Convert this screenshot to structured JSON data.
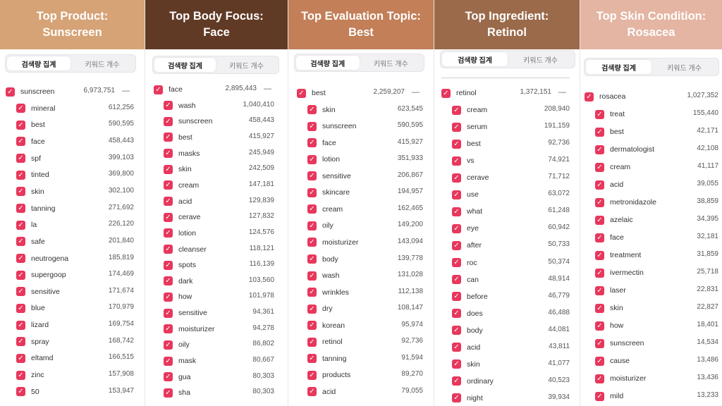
{
  "colors": {
    "header_1": "#d5a376",
    "header_2": "#613a26",
    "header_3": "#c27f58",
    "header_4": "#9b6a4a",
    "header_5": "#e4b5a3",
    "checkbox": "#e8375c"
  },
  "icons": {
    "checkbox": "checkbox-checked-icon",
    "collapse": "minus-icon"
  },
  "panels": [
    {
      "title_line1": "Top Product:",
      "title_line2": "Sunscreen",
      "tab_search_volume": "검색량 집계",
      "tab_keyword_count": "키워드 개수",
      "parent": {
        "keyword": "sunscreen",
        "value": "6,973,751"
      },
      "items": [
        {
          "keyword": "mineral",
          "value": "612,256"
        },
        {
          "keyword": "best",
          "value": "590,595"
        },
        {
          "keyword": "face",
          "value": "458,443"
        },
        {
          "keyword": "spf",
          "value": "399,103"
        },
        {
          "keyword": "tinted",
          "value": "369,800"
        },
        {
          "keyword": "skin",
          "value": "302,100"
        },
        {
          "keyword": "tanning",
          "value": "271,692"
        },
        {
          "keyword": "la",
          "value": "226,120"
        },
        {
          "keyword": "safe",
          "value": "201,840"
        },
        {
          "keyword": "neutrogena",
          "value": "185,819"
        },
        {
          "keyword": "supergoop",
          "value": "174,469"
        },
        {
          "keyword": "sensitive",
          "value": "171,674"
        },
        {
          "keyword": "blue",
          "value": "170,979"
        },
        {
          "keyword": "lizard",
          "value": "169,754"
        },
        {
          "keyword": "spray",
          "value": "168,742"
        },
        {
          "keyword": "eltamd",
          "value": "166,515"
        },
        {
          "keyword": "zinc",
          "value": "157,908"
        },
        {
          "keyword": "50",
          "value": "153,947"
        }
      ]
    },
    {
      "title_line1": "Top Body Focus:",
      "title_line2": "Face",
      "tab_search_volume": "검색량 집계",
      "tab_keyword_count": "키워드 개수",
      "parent": {
        "keyword": "face",
        "value": "2,895,443"
      },
      "items": [
        {
          "keyword": "wash",
          "value": "1,040,410"
        },
        {
          "keyword": "sunscreen",
          "value": "458,443"
        },
        {
          "keyword": "best",
          "value": "415,927"
        },
        {
          "keyword": "masks",
          "value": "245,949"
        },
        {
          "keyword": "skin",
          "value": "242,509"
        },
        {
          "keyword": "cream",
          "value": "147,181"
        },
        {
          "keyword": "acid",
          "value": "129,839"
        },
        {
          "keyword": "cerave",
          "value": "127,832"
        },
        {
          "keyword": "lotion",
          "value": "124,576"
        },
        {
          "keyword": "cleanser",
          "value": "118,121"
        },
        {
          "keyword": "spots",
          "value": "116,139"
        },
        {
          "keyword": "dark",
          "value": "103,560"
        },
        {
          "keyword": "how",
          "value": "101,978"
        },
        {
          "keyword": "sensitive",
          "value": "94,361"
        },
        {
          "keyword": "moisturizer",
          "value": "94,278"
        },
        {
          "keyword": "oily",
          "value": "86,802"
        },
        {
          "keyword": "mask",
          "value": "80,667"
        },
        {
          "keyword": "gua",
          "value": "80,303"
        },
        {
          "keyword": "sha",
          "value": "80,303"
        }
      ]
    },
    {
      "title_line1": "Top Evaluation Topic:",
      "title_line2": "Best",
      "tab_search_volume": "검색량 집계",
      "tab_keyword_count": "키워드 개수",
      "parent": {
        "keyword": "best",
        "value": "2,259,207"
      },
      "items": [
        {
          "keyword": "skin",
          "value": "623,545"
        },
        {
          "keyword": "sunscreen",
          "value": "590,595"
        },
        {
          "keyword": "face",
          "value": "415,927"
        },
        {
          "keyword": "lotion",
          "value": "351,933"
        },
        {
          "keyword": "sensitive",
          "value": "206,867"
        },
        {
          "keyword": "skincare",
          "value": "194,957"
        },
        {
          "keyword": "cream",
          "value": "162,465"
        },
        {
          "keyword": "oily",
          "value": "149,200"
        },
        {
          "keyword": "moisturizer",
          "value": "143,094"
        },
        {
          "keyword": "body",
          "value": "139,778"
        },
        {
          "keyword": "wash",
          "value": "131,028"
        },
        {
          "keyword": "wrinkles",
          "value": "112,138"
        },
        {
          "keyword": "dry",
          "value": "108,147"
        },
        {
          "keyword": "korean",
          "value": "95,974"
        },
        {
          "keyword": "retinol",
          "value": "92,736"
        },
        {
          "keyword": "tanning",
          "value": "91,594"
        },
        {
          "keyword": "products",
          "value": "89,270"
        },
        {
          "keyword": "acid",
          "value": "79,055"
        }
      ]
    },
    {
      "title_line1": "Top Ingredient:",
      "title_line2": "Retinol",
      "tab_search_volume": "검색량 집계",
      "tab_keyword_count": "키워드 개수",
      "parent": {
        "keyword": "retinol",
        "value": "1,372,151"
      },
      "items": [
        {
          "keyword": "cream",
          "value": "208,940"
        },
        {
          "keyword": "serum",
          "value": "191,159"
        },
        {
          "keyword": "best",
          "value": "92,736"
        },
        {
          "keyword": "vs",
          "value": "74,921"
        },
        {
          "keyword": "cerave",
          "value": "71,712"
        },
        {
          "keyword": "use",
          "value": "63,072"
        },
        {
          "keyword": "what",
          "value": "61,248"
        },
        {
          "keyword": "eye",
          "value": "60,942"
        },
        {
          "keyword": "after",
          "value": "50,733"
        },
        {
          "keyword": "roc",
          "value": "50,374"
        },
        {
          "keyword": "can",
          "value": "48,914"
        },
        {
          "keyword": "before",
          "value": "46,779"
        },
        {
          "keyword": "does",
          "value": "46,488"
        },
        {
          "keyword": "body",
          "value": "44,081"
        },
        {
          "keyword": "acid",
          "value": "43,811"
        },
        {
          "keyword": "skin",
          "value": "41,077"
        },
        {
          "keyword": "ordinary",
          "value": "40,523"
        },
        {
          "keyword": "night",
          "value": "39,934"
        }
      ]
    },
    {
      "title_line1": "Top Skin Condition:",
      "title_line2": "Rosacea",
      "tab_search_volume": "검색량 집계",
      "tab_keyword_count": "키워드 개수",
      "parent": {
        "keyword": "rosacea",
        "value": "1,027,352"
      },
      "items": [
        {
          "keyword": "treat",
          "value": "155,440"
        },
        {
          "keyword": "best",
          "value": "42,171"
        },
        {
          "keyword": "dermatologist",
          "value": "42,108"
        },
        {
          "keyword": "cream",
          "value": "41,117"
        },
        {
          "keyword": "acid",
          "value": "39,055"
        },
        {
          "keyword": "metronidazole",
          "value": "38,859"
        },
        {
          "keyword": "azelaic",
          "value": "34,395"
        },
        {
          "keyword": "face",
          "value": "32,181"
        },
        {
          "keyword": "treatment",
          "value": "31,859"
        },
        {
          "keyword": "ivermectin",
          "value": "25,718"
        },
        {
          "keyword": "laser",
          "value": "22,831"
        },
        {
          "keyword": "skin",
          "value": "22,827"
        },
        {
          "keyword": "how",
          "value": "18,401"
        },
        {
          "keyword": "sunscreen",
          "value": "14,534"
        },
        {
          "keyword": "cause",
          "value": "13,486"
        },
        {
          "keyword": "moisturizer",
          "value": "13,436"
        },
        {
          "keyword": "mild",
          "value": "13,233"
        }
      ]
    }
  ]
}
